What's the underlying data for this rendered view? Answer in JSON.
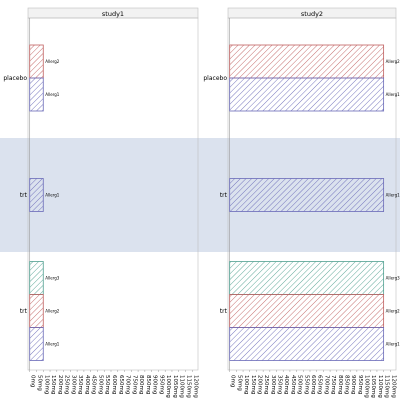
{
  "chart_data": {
    "type": "bar",
    "orientation": "horizontal",
    "grid": true,
    "legend": "none",
    "fill_pattern": "diagonal hatch",
    "panels": [
      "study1",
      "study2"
    ],
    "groups": [
      "placebo",
      "trt"
    ],
    "x_tick_labels": [
      "0mg",
      "50mg",
      "100mg",
      "150mg",
      "200mg",
      "250mg",
      "300mg",
      "350mg",
      "400mg",
      "450mg",
      "500mg",
      "550mg",
      "600mg",
      "650mg",
      "700mg",
      "750mg",
      "800mg",
      "850mg",
      "900mg",
      "950mg",
      "1000mg",
      "1050mg",
      "1100mg",
      "1150mg",
      "1200mg"
    ],
    "x_tick_values": [
      0,
      50,
      100,
      150,
      200,
      250,
      300,
      350,
      400,
      450,
      500,
      550,
      600,
      650,
      700,
      750,
      800,
      850,
      900,
      950,
      1000,
      1050,
      1100,
      1150,
      1200
    ],
    "xlim": [
      -20,
      1220
    ],
    "title": "",
    "xlabel": "",
    "ylabel": "",
    "series_colors": {
      "Allerg1": "#6a6ab8",
      "Allerg2": "#c06060",
      "Allerg3": "#50a090"
    },
    "band_color": "#dbe2ee",
    "rows": [
      {
        "group": "placebo",
        "label": "Allerg2",
        "values": {
          "study1": 100,
          "study2": 1150
        }
      },
      {
        "group": "placebo",
        "label": "Allerg1",
        "values": {
          "study1": 100,
          "study2": 1150
        }
      },
      {
        "group": "trt",
        "label": "Allerg1",
        "values": {
          "study1": 100,
          "study2": 1150
        }
      },
      {
        "group": "trt",
        "label": "Allerg3",
        "values": {
          "study1": 100,
          "study2": 1150
        }
      },
      {
        "group": "trt",
        "label": "Allerg2",
        "values": {
          "study1": 100,
          "study2": 1150
        }
      },
      {
        "group": "trt",
        "label": "Allerg1",
        "values": {
          "study1": 100,
          "study2": 1150
        }
      }
    ]
  }
}
